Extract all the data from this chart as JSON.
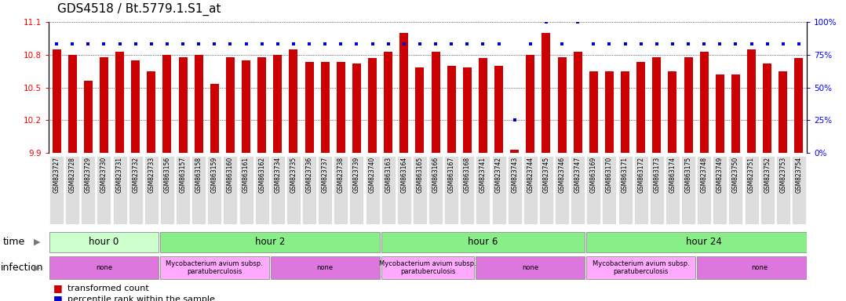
{
  "title": "GDS4518 / Bt.5779.1.S1_at",
  "ylim_left": [
    9.9,
    11.1
  ],
  "yticks_left": [
    9.9,
    10.2,
    10.5,
    10.8,
    11.1
  ],
  "ylim_right": [
    0,
    100
  ],
  "yticks_right": [
    0,
    25,
    50,
    75,
    100
  ],
  "bar_color": "#cc0000",
  "dot_color": "#0000cc",
  "samples": [
    "GSM823727",
    "GSM823728",
    "GSM823729",
    "GSM823730",
    "GSM823731",
    "GSM823732",
    "GSM823733",
    "GSM863156",
    "GSM863157",
    "GSM863158",
    "GSM863159",
    "GSM863160",
    "GSM863161",
    "GSM863162",
    "GSM823734",
    "GSM823735",
    "GSM823736",
    "GSM823737",
    "GSM823738",
    "GSM823739",
    "GSM823740",
    "GSM863163",
    "GSM863164",
    "GSM863165",
    "GSM863166",
    "GSM863167",
    "GSM863168",
    "GSM823741",
    "GSM823742",
    "GSM823743",
    "GSM823744",
    "GSM823745",
    "GSM823746",
    "GSM823747",
    "GSM863169",
    "GSM863170",
    "GSM863171",
    "GSM863172",
    "GSM863173",
    "GSM863174",
    "GSM863175",
    "GSM823748",
    "GSM823749",
    "GSM823750",
    "GSM823751",
    "GSM823752",
    "GSM823753",
    "GSM823754"
  ],
  "bar_values": [
    10.85,
    10.8,
    10.56,
    10.78,
    10.83,
    10.75,
    10.65,
    10.8,
    10.78,
    10.8,
    10.53,
    10.78,
    10.75,
    10.78,
    10.8,
    10.85,
    10.73,
    10.73,
    10.73,
    10.72,
    10.77,
    10.83,
    11.0,
    10.68,
    10.83,
    10.7,
    10.68,
    10.77,
    10.7,
    9.93,
    10.8,
    11.0,
    10.78,
    10.83,
    10.65,
    10.65,
    10.65,
    10.73,
    10.78,
    10.65,
    10.78,
    10.83,
    10.62,
    10.62,
    10.85,
    10.72,
    10.65,
    10.77
  ],
  "dot_values": [
    83,
    83,
    83,
    83,
    83,
    83,
    83,
    83,
    83,
    83,
    83,
    83,
    83,
    83,
    83,
    83,
    83,
    83,
    83,
    83,
    83,
    83,
    83,
    83,
    83,
    83,
    83,
    83,
    83,
    25,
    83,
    100,
    83,
    100,
    83,
    83,
    83,
    83,
    83,
    83,
    83,
    83,
    83,
    83,
    83,
    83,
    83,
    83
  ],
  "time_groups": [
    {
      "label": "hour 0",
      "start": 0,
      "end": 7,
      "color": "#ccffcc"
    },
    {
      "label": "hour 2",
      "start": 7,
      "end": 21,
      "color": "#88ee88"
    },
    {
      "label": "hour 6",
      "start": 21,
      "end": 34,
      "color": "#88ee88"
    },
    {
      "label": "hour 24",
      "start": 34,
      "end": 49,
      "color": "#88ee88"
    }
  ],
  "infection_groups": [
    {
      "label": "none",
      "start": 0,
      "end": 7,
      "color": "#dd77dd"
    },
    {
      "label": "Mycobacterium avium subsp.\nparatuberculosis",
      "start": 7,
      "end": 14,
      "color": "#ffaaff"
    },
    {
      "label": "none",
      "start": 14,
      "end": 21,
      "color": "#dd77dd"
    },
    {
      "label": "Mycobacterium avium subsp.\nparatuberculosis",
      "start": 21,
      "end": 27,
      "color": "#ffaaff"
    },
    {
      "label": "none",
      "start": 27,
      "end": 34,
      "color": "#dd77dd"
    },
    {
      "label": "Mycobacterium avium subsp.\nparatuberculosis",
      "start": 34,
      "end": 41,
      "color": "#ffaaff"
    },
    {
      "label": "none",
      "start": 41,
      "end": 49,
      "color": "#dd77dd"
    }
  ],
  "fig_width": 10.78,
  "fig_height": 3.84,
  "dpi": 100,
  "xlabel_bg_color": "#dddddd"
}
